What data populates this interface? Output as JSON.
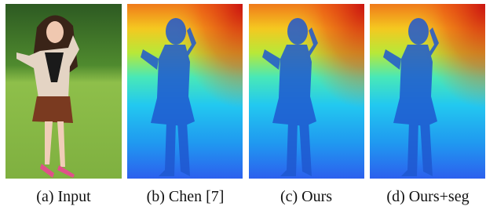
{
  "figure": {
    "panels": [
      {
        "caption": "(a) Input"
      },
      {
        "caption": "(b) Chen [7]"
      },
      {
        "caption": "(c) Ours"
      },
      {
        "caption": "(d) Ours+seg"
      }
    ]
  }
}
